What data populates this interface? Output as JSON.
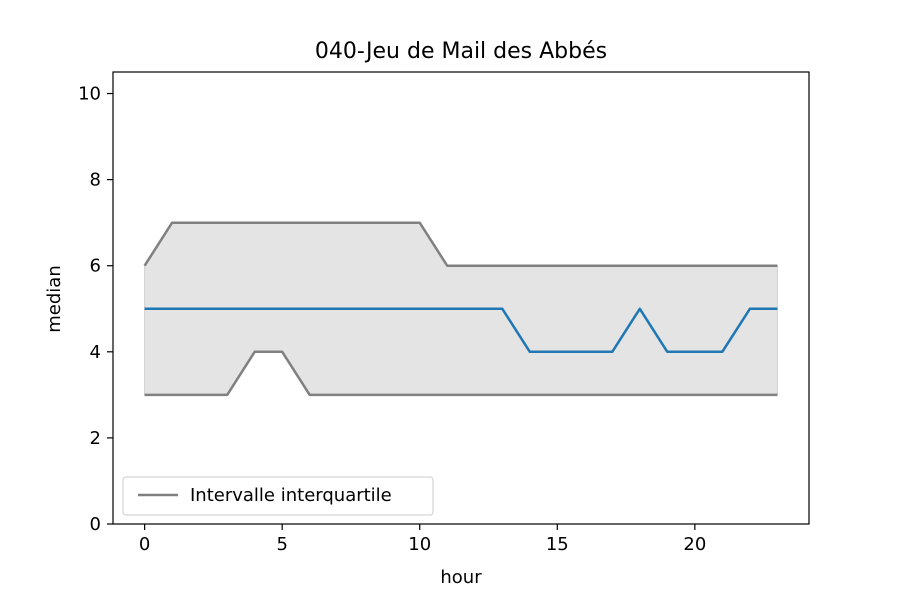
{
  "chart_data": {
    "type": "line",
    "title": "040-Jeu de Mail des Abbés",
    "xlabel": "hour",
    "ylabel": "median",
    "xlim": [
      -1.15,
      24.15
    ],
    "ylim": [
      0,
      10.5
    ],
    "xticks": [
      0,
      5,
      10,
      15,
      20
    ],
    "yticks": [
      0,
      2,
      4,
      6,
      8,
      10
    ],
    "grid": false,
    "legend_position": "lower-left",
    "x": [
      0,
      1,
      2,
      3,
      4,
      5,
      6,
      7,
      8,
      9,
      10,
      11,
      12,
      13,
      14,
      15,
      16,
      17,
      18,
      19,
      20,
      21,
      22,
      23
    ],
    "median": [
      5,
      5,
      5,
      5,
      5,
      5,
      5,
      5,
      5,
      5,
      5,
      5,
      5,
      5,
      4,
      4,
      4,
      4,
      5,
      4,
      4,
      4,
      5,
      5
    ],
    "q1": [
      3,
      3,
      3,
      3,
      4,
      4,
      3,
      3,
      3,
      3,
      3,
      3,
      3,
      3,
      3,
      3,
      3,
      3,
      3,
      3,
      3,
      3,
      3,
      3
    ],
    "q3": [
      6,
      7,
      7,
      7,
      7,
      7,
      7,
      7,
      7,
      7,
      7,
      6,
      6,
      6,
      6,
      6,
      6,
      6,
      6,
      6,
      6,
      6,
      6,
      6
    ],
    "legend": [
      "Intervalle interquartile"
    ],
    "colors": {
      "median": "#1f77b4",
      "quartiles": "#808080",
      "band": "#e4e4e4"
    }
  }
}
